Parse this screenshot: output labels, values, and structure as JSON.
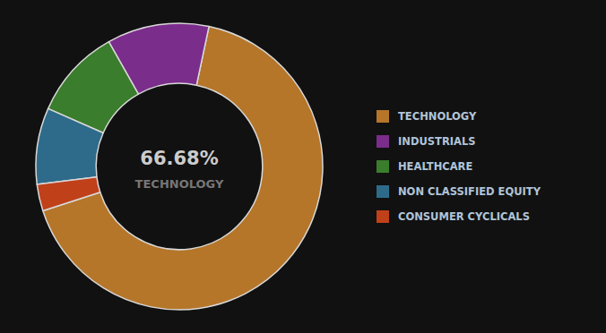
{
  "chart_data": {
    "type": "pie",
    "categories": [
      "TECHNOLOGY",
      "INDUSTRIALS",
      "HEALTHCARE",
      "NON CLASSIFIED EQUITY",
      "CONSUMER CYCLICALS"
    ],
    "values": [
      66.68,
      11.5,
      10.2,
      8.62,
      3.0
    ],
    "colors": [
      "#b5762a",
      "#7b2d8b",
      "#3a7d2c",
      "#2e6b8a",
      "#c0401a"
    ],
    "annotations": [
      "66.68%",
      "TECHNOLOGY"
    ],
    "legend": "right"
  }
}
